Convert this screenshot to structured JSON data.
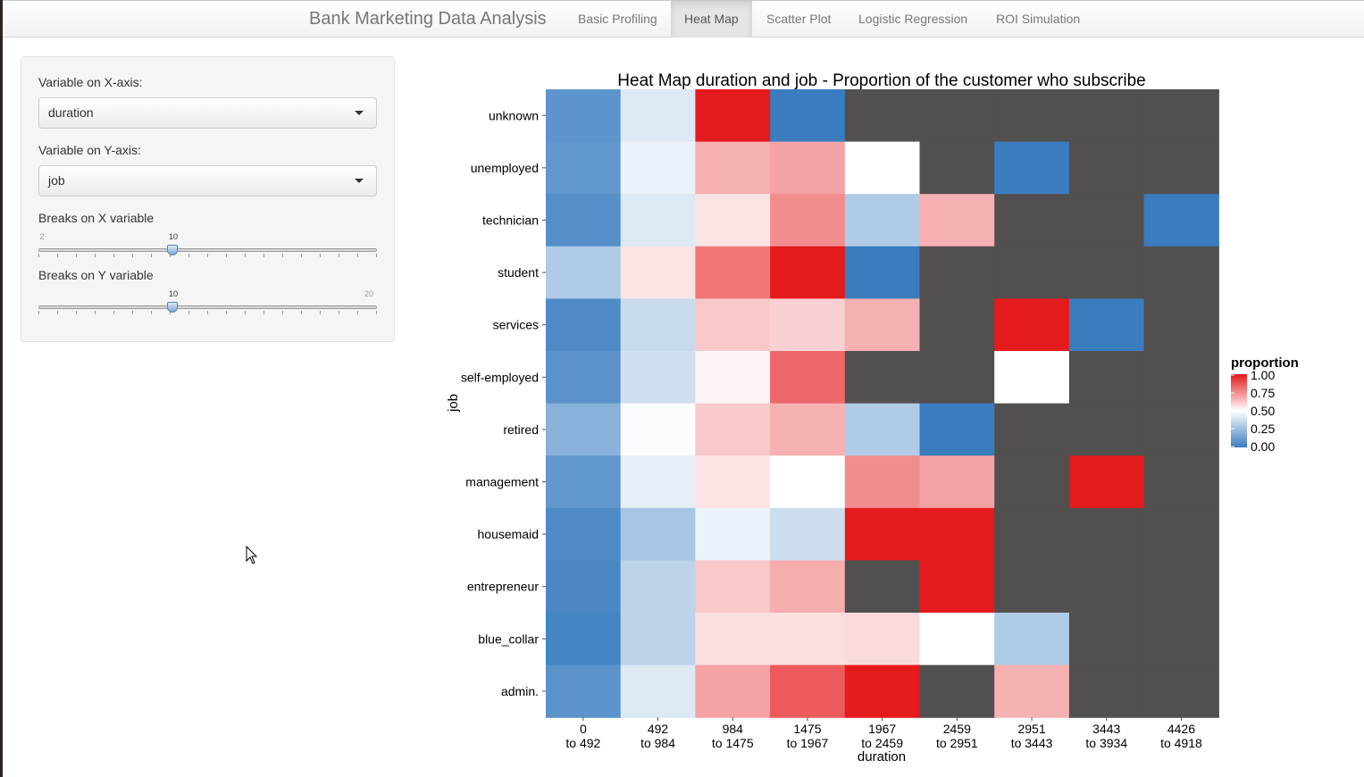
{
  "app_title": "Bank Marketing Data Analysis",
  "tabs": [
    {
      "label": "Basic Profiling",
      "active": false
    },
    {
      "label": "Heat Map",
      "active": true
    },
    {
      "label": "Scatter Plot",
      "active": false
    },
    {
      "label": "Logistic Regression",
      "active": false
    },
    {
      "label": "ROI Simulation",
      "active": false
    }
  ],
  "sidebar": {
    "x_label": "Variable on X-axis:",
    "x_value": "duration",
    "y_label": "Variable on Y-axis:",
    "y_value": "job",
    "breaks_x": {
      "label": "Breaks on X variable",
      "min": 2,
      "max": 20,
      "value": 10,
      "min_label": "2",
      "max_label": "",
      "value_label": "10"
    },
    "breaks_y": {
      "label": "Breaks on Y variable",
      "min": 2,
      "max": 20,
      "value": 10,
      "min_label": "",
      "max_label": "20",
      "value_label": "10"
    }
  },
  "colors": {
    "low": "#3a7dbf",
    "mid": "#ffffff",
    "high": "#e41a1c",
    "na": "#524f4f"
  },
  "chart_data": {
    "type": "heatmap",
    "title": "Heat Map duration and job - Proportion of the customer who subscribe",
    "xlabel": "duration",
    "ylabel": "job",
    "x_categories": [
      [
        "0",
        "to 492"
      ],
      [
        "492",
        "to 984"
      ],
      [
        "984",
        "to 1475"
      ],
      [
        "1475",
        "to 1967"
      ],
      [
        "1967",
        "to 2459"
      ],
      [
        "2459",
        "to 2951"
      ],
      [
        "2951",
        "to 3443"
      ],
      [
        "3443",
        "to 3934"
      ],
      [
        "4426",
        "to 4918"
      ]
    ],
    "y_categories": [
      "unknown",
      "unemployed",
      "technician",
      "student",
      "services",
      "self-employed",
      "retired",
      "management",
      "housemaid",
      "entrepreneur",
      "blue_collar",
      "admin."
    ],
    "values": [
      [
        0.09,
        0.41,
        1.0,
        0.0,
        null,
        null,
        null,
        null,
        null
      ],
      [
        0.1,
        0.45,
        0.67,
        0.7,
        0.5,
        null,
        0.0,
        null,
        null
      ],
      [
        0.07,
        0.41,
        0.56,
        0.75,
        0.3,
        0.67,
        null,
        null,
        0.0
      ],
      [
        0.3,
        0.56,
        0.8,
        1.0,
        0.0,
        null,
        null,
        null,
        null
      ],
      [
        0.05,
        0.36,
        0.62,
        0.6,
        0.67,
        null,
        1.0,
        0.0,
        null
      ],
      [
        0.08,
        0.38,
        0.52,
        0.83,
        null,
        null,
        0.5,
        null,
        null
      ],
      [
        0.2,
        0.49,
        0.62,
        0.67,
        0.3,
        0.0,
        null,
        null,
        null
      ],
      [
        0.1,
        0.44,
        0.56,
        0.5,
        0.75,
        0.7,
        null,
        1.0,
        null
      ],
      [
        0.05,
        0.28,
        0.45,
        0.37,
        1.0,
        1.0,
        null,
        null,
        null
      ],
      [
        0.04,
        0.33,
        0.62,
        0.68,
        null,
        1.0,
        null,
        null,
        null
      ],
      [
        0.03,
        0.33,
        0.57,
        0.57,
        0.58,
        0.5,
        0.3,
        null,
        null
      ],
      [
        0.08,
        0.41,
        0.7,
        0.86,
        1.0,
        null,
        0.67,
        null,
        null
      ]
    ],
    "legend": {
      "title": "proportion",
      "ticks": [
        "0.00",
        "0.25",
        "0.50",
        "0.75",
        "1.00"
      ],
      "position": "right"
    },
    "zlim": [
      0,
      1
    ]
  }
}
